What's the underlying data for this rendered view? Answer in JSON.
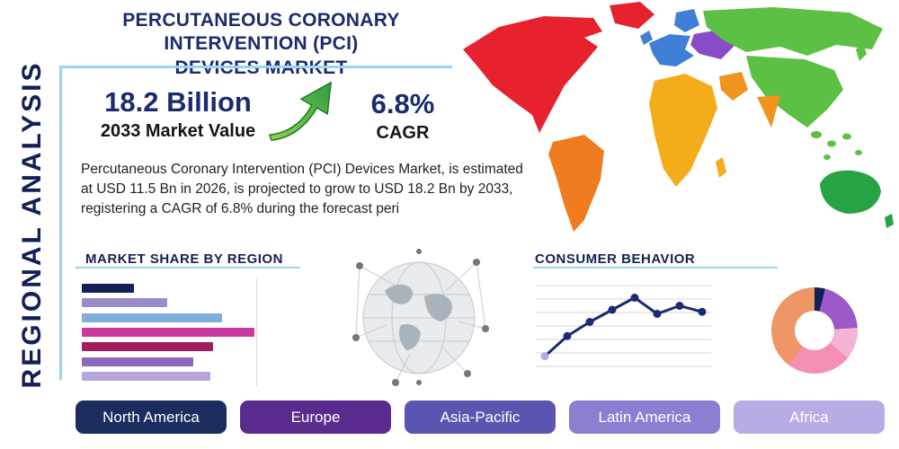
{
  "side_label": "REGIONAL ANALYSIS",
  "title": {
    "line1": "PERCUTANEOUS CORONARY INTERVENTION (PCI)",
    "line2": "DEVICES MARKET"
  },
  "stats": {
    "value": "18.2 Billion",
    "value_label": "2033 Market Value",
    "cagr": "6.8%",
    "cagr_label": "CAGR"
  },
  "description": "Percutaneous Coronary Intervention (PCI) Devices Market, is estimated at USD 11.5 Bn in 2026, is projected to grow to USD 18.2 Bn by 2033, registering a CAGR of 6.8% during the forecast peri",
  "sections": {
    "market_share": "MARKET SHARE BY REGION",
    "consumer_behavior": "CONSUMER BEHAVIOR"
  },
  "colors": {
    "accent_line": "#9bd4f0",
    "navy": "#1c2a6e",
    "arrow_green": "#2f9e44"
  },
  "map": {
    "north_america": "#e8212e",
    "south_america": "#f07c1f",
    "europe": "#3f7fd6",
    "eastern_europe": "#8a4bc9",
    "africa": "#f5ac1b",
    "middle_east": "#f0931f",
    "asia": "#5cc044",
    "india": "#f0931f",
    "australia": "#27a244"
  },
  "region_buttons": [
    {
      "label": "North America",
      "color": "#1b2d5e"
    },
    {
      "label": "Europe",
      "color": "#5a2b8f"
    },
    {
      "label": "Asia-Pacific",
      "color": "#5b55b0"
    },
    {
      "label": "Latin America",
      "color": "#8b7fd1"
    },
    {
      "label": "Africa",
      "color": "#b9ace4"
    }
  ],
  "chart_data": [
    {
      "name": "market_share_by_region",
      "type": "bar",
      "orientation": "horizontal",
      "title": "MARKET SHARE BY REGION",
      "values": [
        24,
        39,
        64,
        79,
        60,
        51,
        59
      ],
      "colors": [
        "#141f58",
        "#9a8cc9",
        "#82aede",
        "#c9399e",
        "#a21d5d",
        "#8a68bd",
        "#b7a6dd"
      ],
      "xlim": [
        0,
        100
      ],
      "grid": true
    },
    {
      "name": "consumer_behavior",
      "type": "line",
      "title": "CONSUMER BEHAVIOR",
      "x": [
        1,
        2,
        3,
        4,
        5,
        6,
        7,
        8
      ],
      "values": [
        1.0,
        3.0,
        4.4,
        5.6,
        6.8,
        5.2,
        6.0,
        5.4
      ],
      "ylim": [
        0,
        8
      ],
      "line_color": "#1c2a6e",
      "marker_color": "#1c2a6e",
      "start_marker_color": "#b8a5e3",
      "grid": true
    },
    {
      "name": "regional_share_donut",
      "type": "pie",
      "donut": true,
      "slices": [
        {
          "value": 4,
          "color": "#141f58"
        },
        {
          "value": 20,
          "color": "#9b59c9"
        },
        {
          "value": 12,
          "color": "#f3b3d2"
        },
        {
          "value": 24,
          "color": "#f48fb8"
        },
        {
          "value": 40,
          "color": "#ef9666"
        }
      ]
    }
  ]
}
